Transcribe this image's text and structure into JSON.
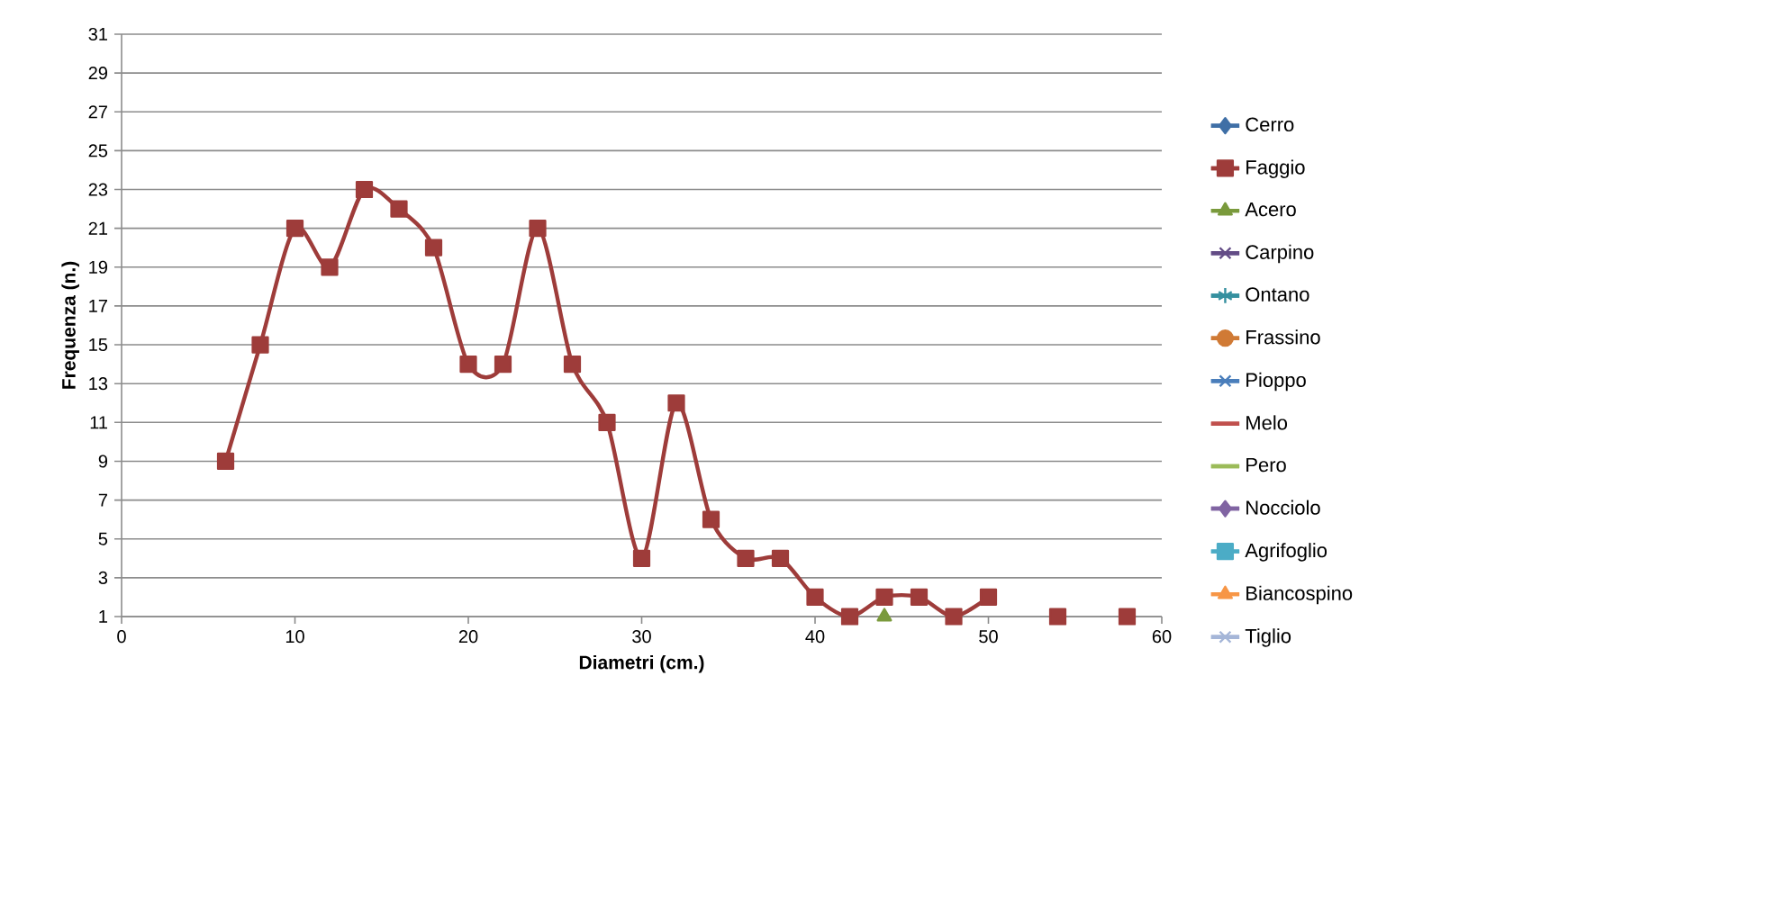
{
  "chart_data": {
    "type": "line",
    "xlabel": "Diametri (cm.)",
    "ylabel": "Frequenza (n.)",
    "xlim": [
      0,
      60
    ],
    "xticks": [
      0,
      10,
      20,
      30,
      40,
      50,
      60
    ],
    "ylim": [
      1,
      31
    ],
    "yticks": [
      1,
      3,
      5,
      7,
      9,
      11,
      13,
      15,
      17,
      19,
      21,
      23,
      25,
      27,
      29,
      31
    ],
    "grid": "y",
    "legend": "right",
    "line_style": "solid",
    "series": [
      {
        "name": "Cerro",
        "color": "#3f6fa6",
        "marker": "diamond"
      },
      {
        "name": "Faggio",
        "color": "#9e3c3a",
        "marker": "square",
        "x": [
          6,
          8,
          10,
          12,
          14,
          16,
          18,
          20,
          22,
          24,
          26,
          28,
          30,
          32,
          34,
          36,
          38,
          40,
          42,
          44,
          46,
          48,
          50,
          52,
          54,
          56,
          58
        ],
        "values": [
          9,
          15,
          21,
          19,
          23,
          22,
          20,
          14,
          14,
          21,
          14,
          11,
          4,
          12,
          6,
          4,
          4,
          2,
          1,
          2,
          2,
          1,
          2,
          null,
          1,
          null,
          1
        ]
      },
      {
        "name": "Acero",
        "color": "#7a9a3c",
        "marker": "triangle",
        "x": [
          44
        ],
        "values": [
          1
        ]
      },
      {
        "name": "Carpino",
        "color": "#634c86",
        "marker": "cross"
      },
      {
        "name": "Ontano",
        "color": "#35909f",
        "marker": "star"
      },
      {
        "name": "Frassino",
        "color": "#d07a35",
        "marker": "circle"
      },
      {
        "name": "Pioppo",
        "color": "#4a7ebb",
        "marker": "cross"
      },
      {
        "name": "Melo",
        "color": "#c0504d",
        "marker": "none"
      },
      {
        "name": "Pero",
        "color": "#9bbb59",
        "marker": "none"
      },
      {
        "name": "Nocciolo",
        "color": "#8064a2",
        "marker": "diamond"
      },
      {
        "name": "Agrifoglio",
        "color": "#4bacc6",
        "marker": "square"
      },
      {
        "name": "Biancospino",
        "color": "#f79646",
        "marker": "triangle"
      },
      {
        "name": "Tiglio",
        "color": "#a5b6d8",
        "marker": "cross"
      }
    ]
  }
}
